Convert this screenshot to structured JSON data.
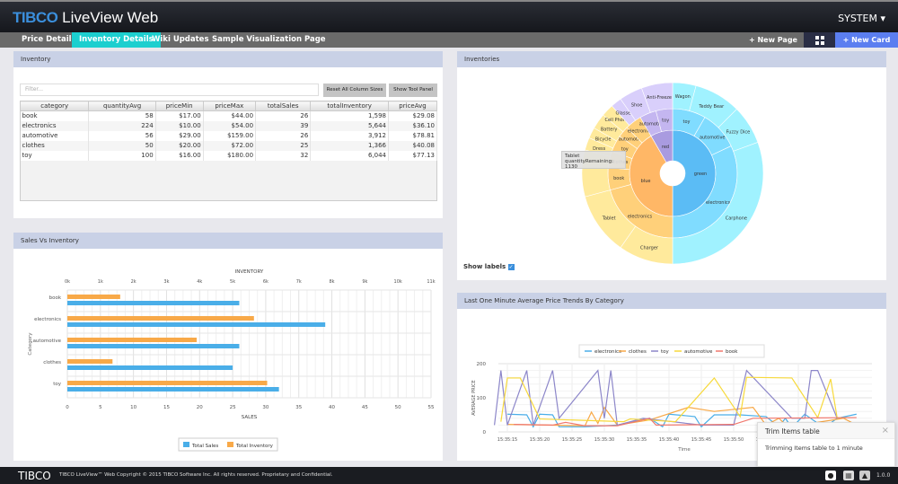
{
  "header": {
    "logo_brand": "TIBCO",
    "logo_product": "LiveView",
    "logo_suffix": "Web",
    "user_menu": "SYSTEM ▾"
  },
  "tabs": [
    {
      "label": "Price Details"
    },
    {
      "label": "Inventory Details",
      "active": true
    },
    {
      "label": "Wiki Updates"
    },
    {
      "label": "Sample Visualization Page"
    }
  ],
  "toolbar": {
    "new_page": "+ New Page",
    "grid_icon": "grid-icon",
    "new_card": "+ New Card"
  },
  "colors": {
    "accent_tab": "#1ccfcf",
    "new_card": "#5b7ef0",
    "card_header": "#c9d1e6",
    "sales": "#4aaee8",
    "inventory": "#f8a948"
  },
  "inventory_card": {
    "title": "Inventory",
    "filter_placeholder": "Filter...",
    "reset_button": "Reset All Column Sizes",
    "tool_panel_button": "Show Tool Panel",
    "columns": [
      "category",
      "quantityAvg",
      "priceMin",
      "priceMax",
      "totalSales",
      "totalInventory",
      "priceAvg"
    ],
    "rows": [
      [
        "book",
        "58",
        "$17.00",
        "$44.00",
        "26",
        "1,598",
        "$29.08"
      ],
      [
        "electronics",
        "224",
        "$10.00",
        "$54.00",
        "39",
        "5,644",
        "$36.10"
      ],
      [
        "automotive",
        "56",
        "$29.00",
        "$159.00",
        "26",
        "3,912",
        "$78.81"
      ],
      [
        "clothes",
        "50",
        "$20.00",
        "$72.00",
        "25",
        "1,366",
        "$40.08"
      ],
      [
        "toy",
        "100",
        "$16.00",
        "$180.00",
        "32",
        "6,044",
        "$77.13"
      ]
    ]
  },
  "sales_card": {
    "title": "Sales Vs Inventory"
  },
  "inventories_card": {
    "title": "Inventories",
    "show_labels": "Show labels",
    "show_labels_checked": true,
    "tooltip_title": "Tablet",
    "tooltip_value": "quantityRemaining: 1130"
  },
  "trend_card": {
    "title": "Last One Minute Average Price Trends By Category"
  },
  "toast": {
    "title": "Trim Items table",
    "message": "Trimming Items table to 1 minute",
    "close": "×"
  },
  "footer": {
    "logo": "TIBCO",
    "copyright": "TIBCO LiveView™ Web Copyright © 2015 TIBCO Software Inc. All rights reserved. Proprietary and Confidential.",
    "version": "1.0.0",
    "icons": [
      "info-icon",
      "calculator-icon",
      "warning-icon"
    ]
  },
  "chart_data": [
    {
      "type": "bar",
      "orientation": "horizontal",
      "categories": [
        "book",
        "electronics",
        "automotive",
        "clothes",
        "toy"
      ],
      "series": [
        {
          "name": "Total Sales",
          "axis": "bottom",
          "values": [
            26,
            39,
            26,
            25,
            32
          ]
        },
        {
          "name": "Total Inventory",
          "axis": "top",
          "values": [
            1598,
            5644,
            3912,
            1366,
            6044
          ]
        }
      ],
      "xlabel": "SALES",
      "x2label": "INVENTORY",
      "ylabel": "Category",
      "xlim": [
        0,
        55
      ],
      "x2lim": [
        0,
        11000
      ],
      "xticks": [
        "0",
        "5",
        "10",
        "15",
        "20",
        "25",
        "30",
        "35",
        "40",
        "45",
        "50",
        "55"
      ],
      "x2ticks": [
        "0k",
        "1k",
        "2k",
        "3k",
        "4k",
        "5k",
        "6k",
        "7k",
        "8k",
        "9k",
        "10k",
        "11k"
      ],
      "grid": true,
      "legend": "bottom"
    },
    {
      "type": "sunburst",
      "rings": [
        [
          {
            "label": "green",
            "value": 180,
            "color": "#5bbcf5"
          },
          {
            "label": "blue",
            "value": 150,
            "color": "#ffb766"
          },
          {
            "label": "red",
            "value": 30,
            "color": "#a99be0"
          }
        ],
        [
          {
            "label": "toy",
            "value": 30,
            "color": "#80dcff"
          },
          {
            "label": "automotive",
            "value": 35,
            "color": "#80dcff"
          },
          {
            "label": "electronics",
            "value": 115,
            "color": "#80dcff"
          },
          {
            "label": "electronics",
            "value": 75,
            "color": "#ffd07a"
          },
          {
            "label": "book",
            "value": 20,
            "color": "#ffd07a"
          },
          {
            "label": "clothes",
            "value": 15,
            "color": "#ffd07a"
          },
          {
            "label": "toy",
            "value": 15,
            "color": "#ffd07a"
          },
          {
            "label": "automotive",
            "value": 10,
            "color": "#ffd07a"
          },
          {
            "label": "electronics",
            "value": 15,
            "color": "#ffd07a"
          },
          {
            "label": "automotive",
            "value": 15,
            "color": "#c4b6f0"
          },
          {
            "label": "toy",
            "value": 15,
            "color": "#c4b6f0"
          }
        ],
        [
          {
            "label": "Wagon",
            "value": 15,
            "color": "#a0f2ff"
          },
          {
            "label": "Teddy Bear",
            "value": 30,
            "color": "#a0f2ff"
          },
          {
            "label": "Fuzzy Dice",
            "value": 25,
            "color": "#a0f2ff"
          },
          {
            "label": "Carphone",
            "value": 110,
            "color": "#a0f2ff"
          },
          {
            "label": "Charger",
            "value": 35,
            "color": "#ffea9c"
          },
          {
            "label": "Tablet",
            "value": 40,
            "color": "#ffea9c"
          },
          {
            "label": "",
            "value": 30,
            "color": "#ffea9c"
          },
          {
            "label": "Dress",
            "value": 8,
            "color": "#ffea9c"
          },
          {
            "label": "Bicycle",
            "value": 7,
            "color": "#ffea9c"
          },
          {
            "label": "Battery",
            "value": 10,
            "color": "#ffea9c"
          },
          {
            "label": "Cell Phone",
            "value": 8,
            "color": "#ffea9c"
          },
          {
            "label": "Glasses",
            "value": 7,
            "color": "#d9cffb"
          },
          {
            "label": "Shoe",
            "value": 15,
            "color": "#d9cffb"
          },
          {
            "label": "Anti-Freeze",
            "value": 20,
            "color": "#d9cffb"
          }
        ]
      ]
    },
    {
      "type": "line",
      "xlabel": "Time",
      "ylabel": "AVERAGE PRICE",
      "ylim": [
        0,
        200
      ],
      "yticks": [
        "0",
        "100",
        "200"
      ],
      "xticks": [
        "15:35:15",
        "15:35:20",
        "15:35:25",
        "15:35:30",
        "15:35:35",
        "15:35:40",
        "15:35:45",
        "15:35:50",
        "15:35:55",
        "15:36:00"
      ],
      "legend": "top",
      "grid": true,
      "series": [
        {
          "name": "electronics",
          "color": "#4aaee8",
          "points": [
            [
              "15:35:15",
              52
            ],
            [
              "15:35:18",
              50
            ],
            [
              "15:35:19",
              15
            ],
            [
              "15:35:20",
              52
            ],
            [
              "15:35:22",
              50
            ],
            [
              "15:35:23",
              15
            ],
            [
              "15:35:27",
              15
            ],
            [
              "15:35:32",
              20
            ],
            [
              "15:35:37",
              40
            ],
            [
              "15:35:39",
              15
            ],
            [
              "15:35:40",
              52
            ],
            [
              "15:35:44",
              45
            ],
            [
              "15:35:45",
              15
            ],
            [
              "15:35:47",
              50
            ],
            [
              "15:35:51",
              50
            ],
            [
              "15:35:55",
              45
            ],
            [
              "15:35:57",
              15
            ],
            [
              "15:35:58",
              40
            ],
            [
              "15:35:59",
              12
            ],
            [
              "15:36:01",
              52
            ],
            [
              "15:36:04",
              12
            ],
            [
              "15:36:06",
              40
            ],
            [
              "15:36:09",
              52
            ]
          ]
        },
        {
          "name": "clothes",
          "color": "#f8a948",
          "points": [
            [
              "15:35:15",
              22
            ],
            [
              "15:35:27",
              18
            ],
            [
              "15:35:28",
              58
            ],
            [
              "15:35:29",
              25
            ],
            [
              "15:35:30",
              72
            ],
            [
              "15:35:32",
              20
            ],
            [
              "15:35:37",
              35
            ],
            [
              "15:35:43",
              72
            ],
            [
              "15:35:47",
              60
            ],
            [
              "15:35:53",
              72
            ],
            [
              "15:35:55",
              20
            ],
            [
              "15:35:57",
              40
            ],
            [
              "15:35:58",
              22
            ],
            [
              "15:36:01",
              22
            ],
            [
              "15:36:07",
              40
            ],
            [
              "15:36:09",
              20
            ]
          ]
        },
        {
          "name": "toy",
          "color": "#8c86c9",
          "points": [
            [
              "15:35:13",
              20
            ],
            [
              "15:35:14",
              180
            ],
            [
              "15:35:15",
              20
            ],
            [
              "15:35:18",
              180
            ],
            [
              "15:35:19",
              20
            ],
            [
              "15:35:22",
              180
            ],
            [
              "15:35:23",
              40
            ],
            [
              "15:35:29",
              180
            ],
            [
              "15:35:30",
              40
            ],
            [
              "15:35:31",
              180
            ],
            [
              "15:35:32",
              20
            ],
            [
              "15:35:36",
              40
            ],
            [
              "15:35:45",
              20
            ],
            [
              "15:35:50",
              20
            ],
            [
              "15:35:52",
              180
            ],
            [
              "15:35:59",
              40
            ],
            [
              "15:36:01",
              40
            ],
            [
              "15:36:02",
              180
            ],
            [
              "15:36:03",
              180
            ],
            [
              "15:36:06",
              40
            ]
          ]
        },
        {
          "name": "automotive",
          "color": "#f7d93a",
          "points": [
            [
              "15:35:14",
              30
            ],
            [
              "15:35:15",
              158
            ],
            [
              "15:35:17",
              158
            ],
            [
              "15:35:20",
              38
            ],
            [
              "15:35:30",
              32
            ],
            [
              "15:35:33",
              30
            ],
            [
              "15:35:34",
              38
            ],
            [
              "15:35:41",
              30
            ],
            [
              "15:35:47",
              158
            ],
            [
              "15:35:51",
              45
            ],
            [
              "15:35:52",
              160
            ],
            [
              "15:35:59",
              158
            ],
            [
              "15:36:03",
              42
            ],
            [
              "15:36:05",
              155
            ],
            [
              "15:36:06",
              42
            ],
            [
              "15:36:08",
              42
            ]
          ]
        },
        {
          "name": "book",
          "color": "#f0786e",
          "points": [
            [
              "15:35:16",
              22
            ],
            [
              "15:35:22",
              20
            ],
            [
              "15:35:24",
              28
            ],
            [
              "15:35:27",
              18
            ],
            [
              "15:35:32",
              18
            ],
            [
              "15:35:37",
              40
            ],
            [
              "15:35:38",
              20
            ],
            [
              "15:35:50",
              22
            ],
            [
              "15:35:53",
              40
            ],
            [
              "15:36:09",
              42
            ]
          ]
        }
      ]
    }
  ]
}
